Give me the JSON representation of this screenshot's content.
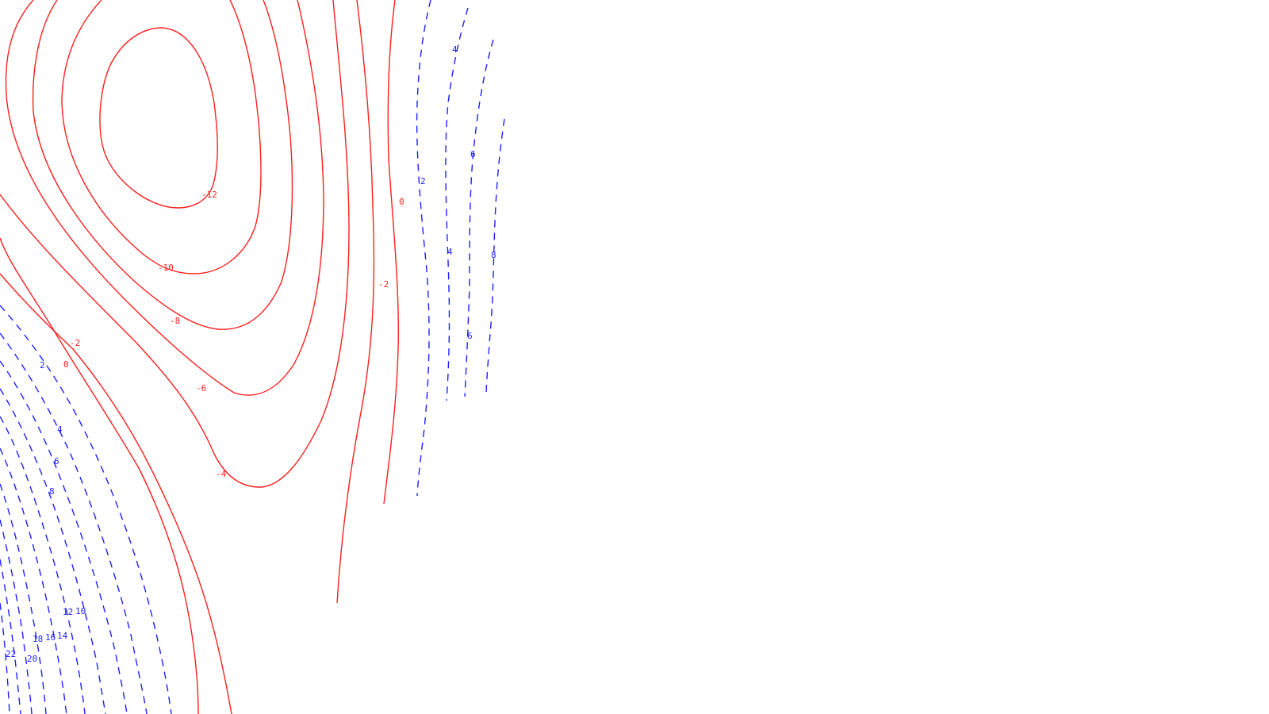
{
  "contour_map": {
    "colors": {
      "negative_contours": "#ff1f1f",
      "positive_contours": "#1f1fff",
      "background": "#ffffff"
    },
    "line_styles": {
      "negative_and_zero": "solid",
      "positive": "dashed"
    },
    "labels": [
      {
        "id": "neg-12",
        "text": "-12",
        "sign": "neg"
      },
      {
        "id": "neg-10",
        "text": "-10",
        "sign": "neg"
      },
      {
        "id": "neg-8",
        "text": "-8",
        "sign": "neg"
      },
      {
        "id": "neg-6",
        "text": "-6",
        "sign": "neg"
      },
      {
        "id": "neg-4",
        "text": "-4",
        "sign": "neg"
      },
      {
        "id": "neg-2-right",
        "text": "-2",
        "sign": "neg"
      },
      {
        "id": "zero-right",
        "text": "0",
        "sign": "neg"
      },
      {
        "id": "neg-2-left",
        "text": "-2",
        "sign": "neg"
      },
      {
        "id": "zero-left",
        "text": "0",
        "sign": "neg"
      },
      {
        "id": "pos-2-right",
        "text": "2",
        "sign": "pos"
      },
      {
        "id": "pos-4-top",
        "text": "4",
        "sign": "pos"
      },
      {
        "id": "pos-4-mid",
        "text": "4",
        "sign": "pos"
      },
      {
        "id": "pos-6-top",
        "text": "6",
        "sign": "pos"
      },
      {
        "id": "pos-6-mid",
        "text": "6",
        "sign": "pos"
      },
      {
        "id": "pos-8-right",
        "text": "8",
        "sign": "pos"
      },
      {
        "id": "pos-2-left",
        "text": "2",
        "sign": "pos"
      },
      {
        "id": "pos-4-left",
        "text": "4",
        "sign": "pos"
      },
      {
        "id": "pos-6-left",
        "text": "6",
        "sign": "pos"
      },
      {
        "id": "pos-8-left",
        "text": "8",
        "sign": "pos"
      },
      {
        "id": "pos-10",
        "text": "10",
        "sign": "pos"
      },
      {
        "id": "pos-12",
        "text": "12",
        "sign": "pos"
      },
      {
        "id": "pos-14",
        "text": "14",
        "sign": "pos"
      },
      {
        "id": "pos-16",
        "text": "16",
        "sign": "pos"
      },
      {
        "id": "pos-18",
        "text": "18",
        "sign": "pos"
      },
      {
        "id": "pos-20",
        "text": "20",
        "sign": "pos"
      },
      {
        "id": "pos-22",
        "text": "22",
        "sign": "pos"
      }
    ]
  }
}
